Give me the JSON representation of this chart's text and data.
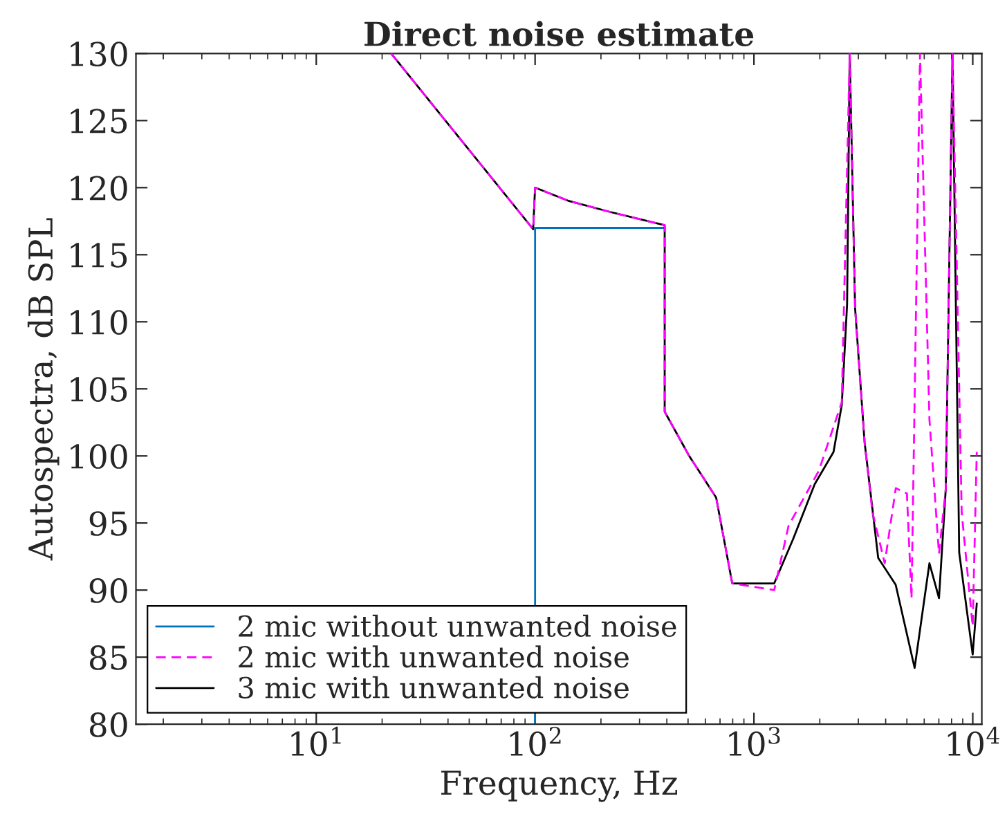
{
  "chart_data": {
    "type": "line",
    "title": "Direct noise estimate",
    "xlabel": "Frequency, Hz",
    "ylabel": "Autospectra, dB SPL",
    "log": "x",
    "xlim": [
      1.5,
      11000
    ],
    "xticks": [
      {
        "value": 10,
        "label": "10$^{1}$"
      },
      {
        "value": 100,
        "label": "10$^{2}$"
      },
      {
        "value": 1000,
        "label": "10$^{3}$"
      },
      {
        "value": 10000,
        "label": "10$^{4}$"
      }
    ],
    "ylim": [
      80,
      130
    ],
    "yticks": [
      80,
      85,
      90,
      95,
      100,
      105,
      110,
      115,
      120,
      125,
      130
    ],
    "grid": false,
    "legend": "bottom left",
    "series": [
      {
        "name": "2 mic without unwanted noise",
        "color": "#0072bd",
        "line_style": "solid",
        "x": [
          100,
          100,
          391
        ],
        "values": [
          80,
          117,
          117
        ]
      },
      {
        "name": "2 mic with unwanted noise",
        "color": "#ff00ff",
        "line_style": "dashed",
        "x": [
          22,
          98,
          100,
          143,
          219,
          391,
          391,
          506,
          672,
          796,
          1238,
          1440,
          1980,
          2520,
          2740,
          2900,
          3205,
          3480,
          3960,
          4450,
          5000,
          5250,
          5740,
          6340,
          7010,
          7530,
          8080,
          8900,
          9990,
          10430
        ],
        "values": [
          130,
          116.9,
          120,
          119.0,
          118.2,
          117.2,
          103.3,
          100,
          96.9,
          90.5,
          90,
          94.8,
          98.9,
          104,
          130,
          111,
          101,
          95.8,
          92,
          97.6,
          97.2,
          89.4,
          130,
          102.7,
          92.7,
          97.6,
          130,
          95.8,
          87.3,
          100.3
        ]
      },
      {
        "name": "3 mic with unwanted noise",
        "color": "#000000",
        "line_style": "solid",
        "x": [
          22,
          98,
          100,
          143,
          219,
          391,
          391,
          506,
          672,
          796,
          1238,
          1510,
          1896,
          2311,
          2520,
          2665,
          2740,
          2900,
          3205,
          3697,
          4444,
          5424,
          6338,
          7010,
          7530,
          8080,
          8670,
          9990,
          10430
        ],
        "values": [
          130,
          116.9,
          120,
          119.0,
          118.2,
          117.2,
          103.3,
          100,
          96.9,
          90.5,
          90.5,
          93.8,
          97.9,
          100.3,
          103.8,
          111.3,
          130,
          111,
          101,
          92.4,
          90.4,
          84.2,
          92,
          89.4,
          97.6,
          130,
          92.8,
          85.2,
          89
        ]
      }
    ]
  }
}
